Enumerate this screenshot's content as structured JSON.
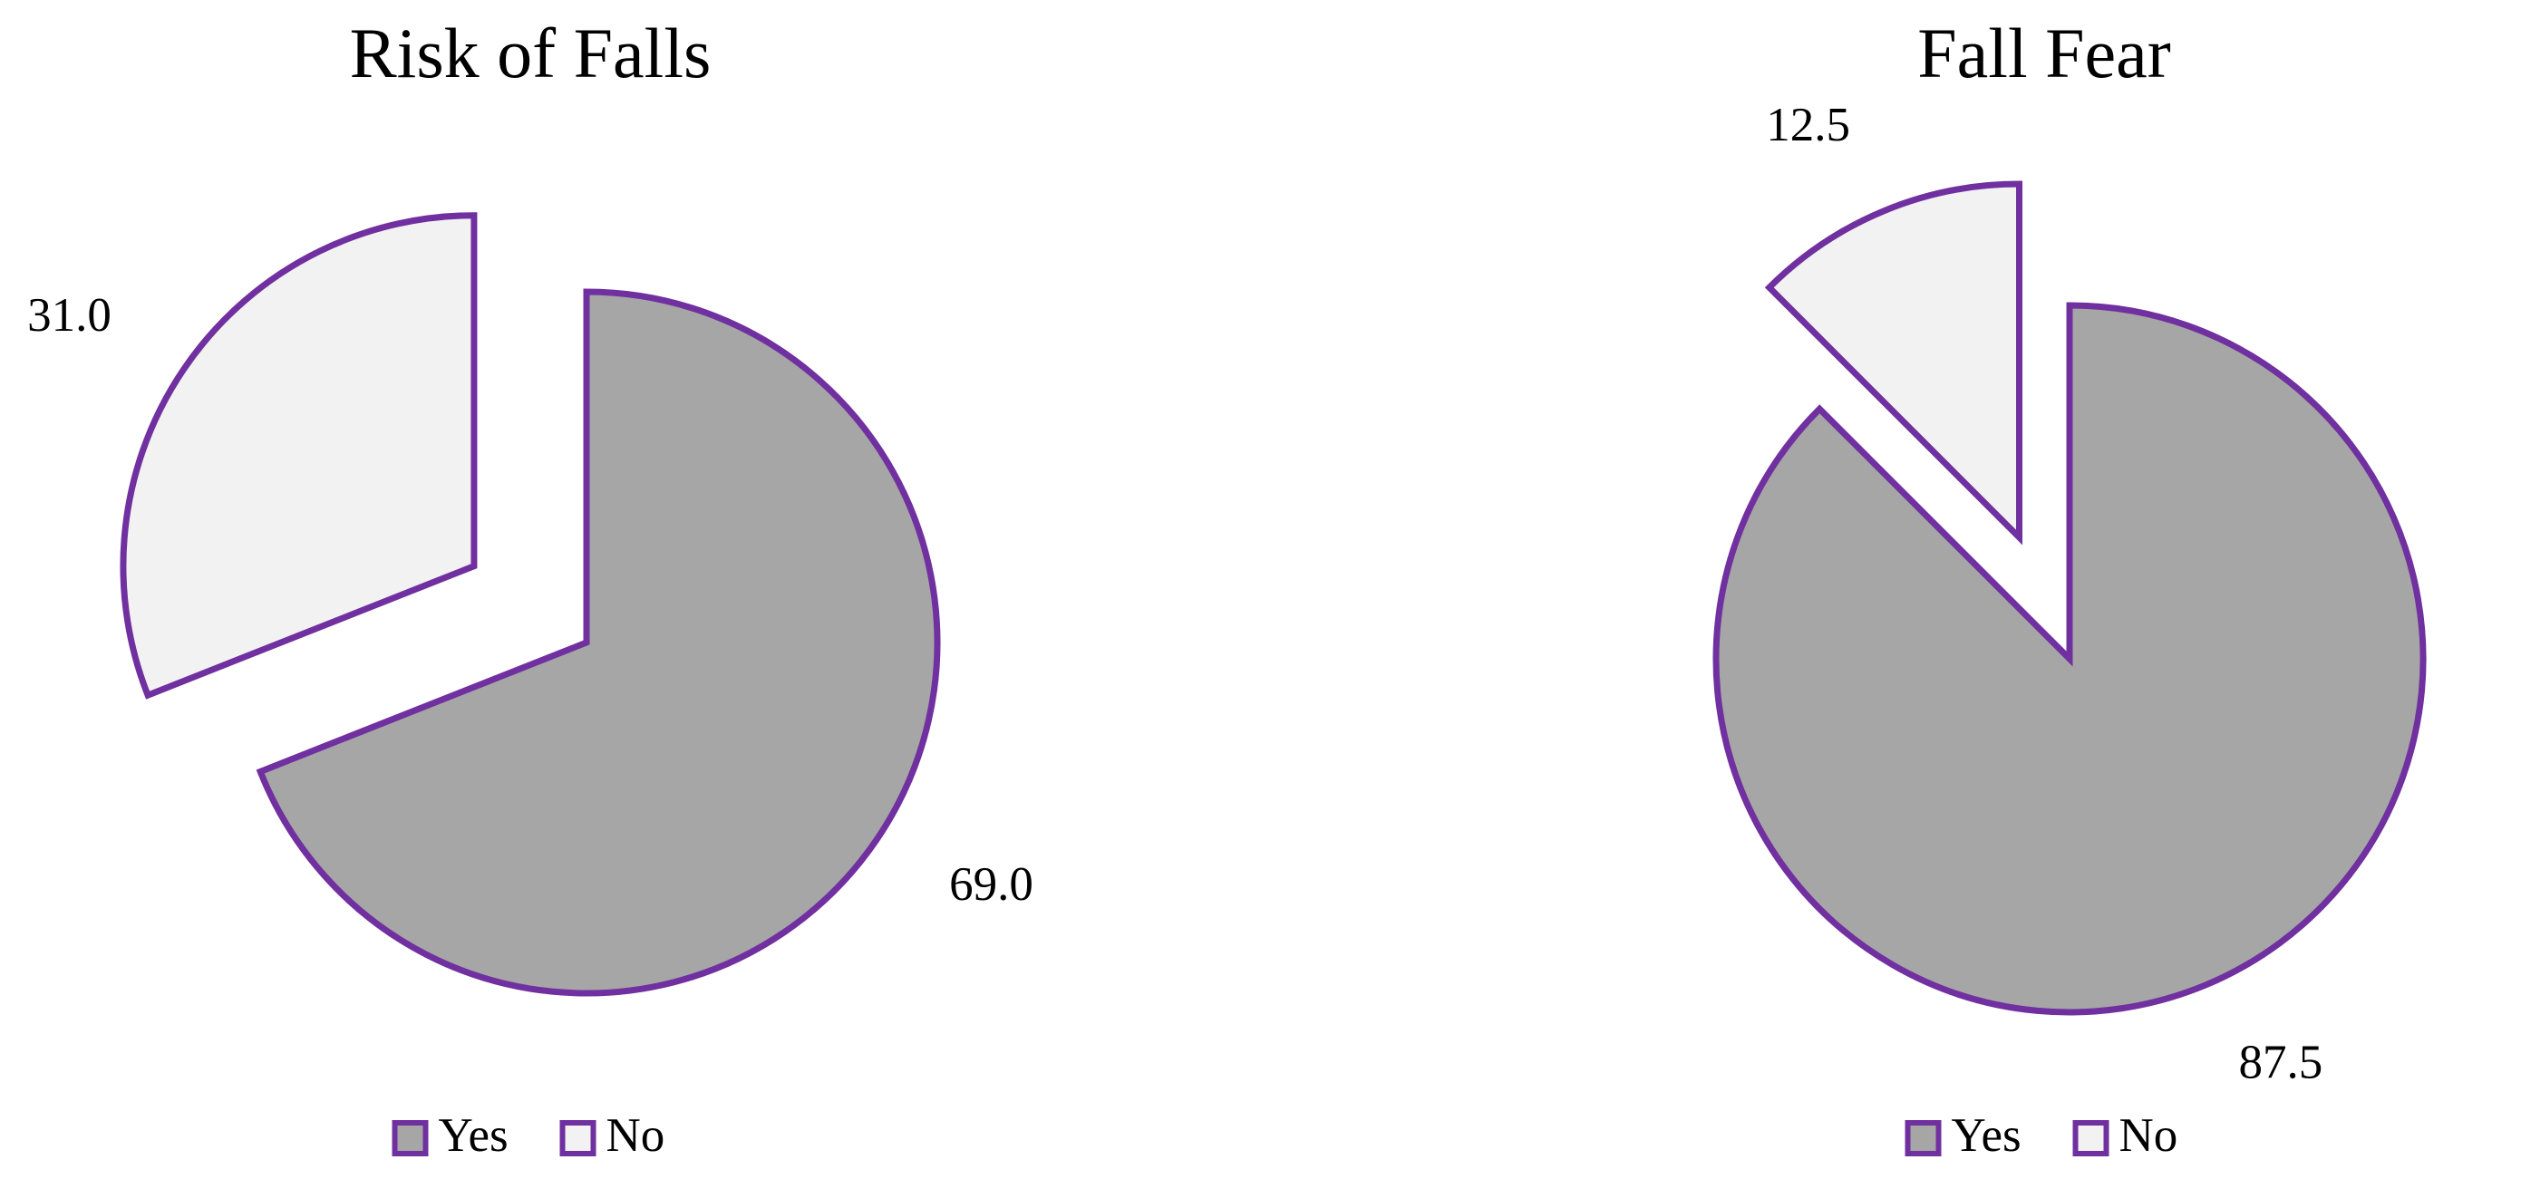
{
  "chart_data": [
    {
      "type": "pie",
      "title": "Risk of Falls",
      "categories": [
        "Yes",
        "No"
      ],
      "values": [
        69,
        31
      ],
      "value_labels": [
        "69.0",
        "31.0"
      ],
      "colors": [
        "#a6a6a6",
        "#f2f2f2"
      ],
      "edgecolor": "#7030a0",
      "legend": "bottom"
    },
    {
      "type": "pie",
      "title": "Fall Fear",
      "categories": [
        "Yes",
        "No"
      ],
      "values": [
        87.5,
        12.5
      ],
      "colors": [
        "#a6a6a6",
        "#f2f2f2"
      ],
      "edgecolor": "#7030a0",
      "legend": "bottom"
    }
  ]
}
